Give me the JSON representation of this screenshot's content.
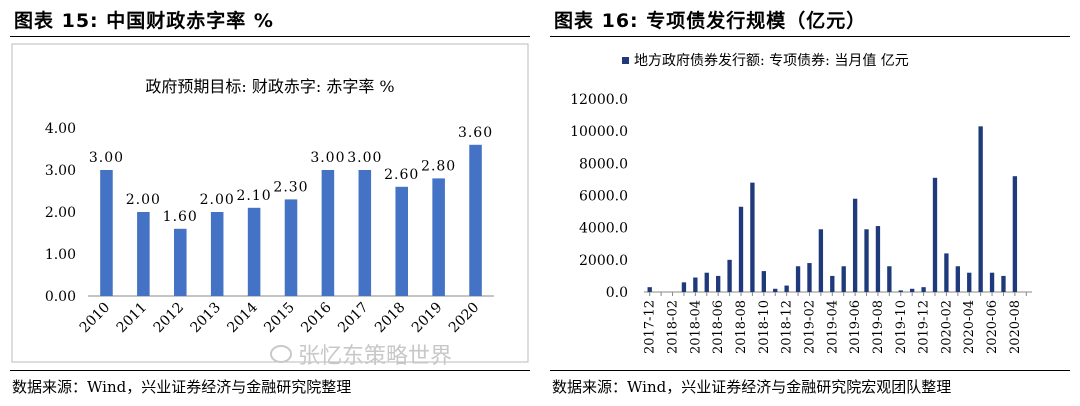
{
  "left": {
    "fig_title": "图表 15:  中国财政赤字率  %",
    "source": "数据来源：Wind，兴业证券经济与金融研究院整理"
  },
  "right": {
    "fig_title": "图表 16:  专项债发行规模（亿元）",
    "source": "数据来源：Wind，兴业证券经济与金融研究院宏观团队整理"
  },
  "watermark": "张忆东策略世界",
  "colors": {
    "bar": "#4472C4",
    "bar_dark": "#1F3A7A",
    "axis": "#888888"
  },
  "chart_data": [
    {
      "type": "bar",
      "title": "政府预期目标: 财政赤字: 赤字率  %",
      "categories": [
        "2010",
        "2011",
        "2012",
        "2013",
        "2014",
        "2015",
        "2016",
        "2017",
        "2018",
        "2019",
        "2020"
      ],
      "values": [
        3.0,
        2.0,
        1.6,
        2.0,
        2.1,
        2.3,
        3.0,
        3.0,
        2.6,
        2.8,
        3.6
      ],
      "data_labels": [
        "3.00",
        "2.00",
        "1.60",
        "2.00",
        "2.10",
        "2.30",
        "3.00",
        "3.00",
        "2.60",
        "2.80",
        "3.60"
      ],
      "y_ticks": [
        "0.00",
        "1.00",
        "2.00",
        "3.00",
        "4.00"
      ],
      "ylim": [
        0,
        4
      ],
      "grid": false,
      "legend": "none"
    },
    {
      "type": "bar",
      "legend_label": "地方政府债券发行额: 专项债券: 当月值  亿元",
      "legend": "top",
      "x": [
        "2017-12",
        "2018-01",
        "2018-02",
        "2018-03",
        "2018-04",
        "2018-05",
        "2018-06",
        "2018-07",
        "2018-08",
        "2018-09",
        "2018-10",
        "2018-11",
        "2018-12",
        "2019-01",
        "2019-02",
        "2019-03",
        "2019-04",
        "2019-05",
        "2019-06",
        "2019-07",
        "2019-08",
        "2019-09",
        "2019-10",
        "2019-11",
        "2019-12",
        "2020-01",
        "2020-02",
        "2020-03",
        "2020-04",
        "2020-05",
        "2020-06",
        "2020-07",
        "2020-08",
        "2020-09"
      ],
      "values": [
        300,
        0,
        0,
        600,
        900,
        1200,
        1000,
        2000,
        5300,
        6800,
        1300,
        200,
        400,
        1600,
        1800,
        3900,
        1000,
        1600,
        5800,
        3900,
        4100,
        1600,
        100,
        200,
        300,
        7100,
        2400,
        1600,
        1200,
        10300,
        1200,
        1000,
        7200,
        0
      ],
      "x_tick_labels": [
        "2017-12",
        "2018-02",
        "2018-04",
        "2018-06",
        "2018-08",
        "2018-10",
        "2018-12",
        "2019-02",
        "2019-04",
        "2019-06",
        "2019-08",
        "2019-10",
        "2019-12",
        "2020-02",
        "2020-04",
        "2020-06",
        "2020-08"
      ],
      "y_ticks": [
        "0.0",
        "2000.0",
        "4000.0",
        "6000.0",
        "8000.0",
        "10000.0",
        "12000.0"
      ],
      "ylim": [
        0,
        12000
      ],
      "grid": false
    }
  ]
}
